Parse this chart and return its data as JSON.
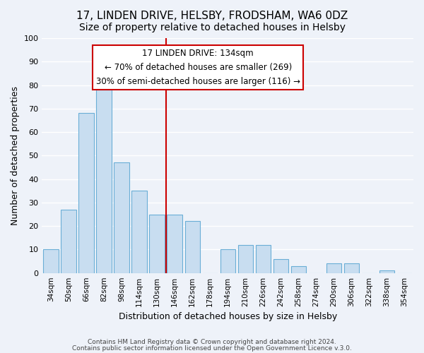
{
  "title": "17, LINDEN DRIVE, HELSBY, FRODSHAM, WA6 0DZ",
  "subtitle": "Size of property relative to detached houses in Helsby",
  "xlabel": "Distribution of detached houses by size in Helsby",
  "ylabel": "Number of detached properties",
  "bar_color": "#c8ddf0",
  "bar_edge_color": "#6aaed6",
  "categories": [
    "34sqm",
    "50sqm",
    "66sqm",
    "82sqm",
    "98sqm",
    "114sqm",
    "130sqm",
    "146sqm",
    "162sqm",
    "178sqm",
    "194sqm",
    "210sqm",
    "226sqm",
    "242sqm",
    "258sqm",
    "274sqm",
    "290sqm",
    "306sqm",
    "322sqm",
    "338sqm",
    "354sqm"
  ],
  "values": [
    10,
    27,
    68,
    78,
    47,
    35,
    25,
    25,
    22,
    0,
    10,
    12,
    12,
    6,
    3,
    0,
    4,
    4,
    0,
    1,
    0
  ],
  "ylim": [
    0,
    100
  ],
  "vline_color": "#cc0000",
  "annotation_title": "17 LINDEN DRIVE: 134sqm",
  "annotation_line1": "← 70% of detached houses are smaller (269)",
  "annotation_line2": "30% of semi-detached houses are larger (116) →",
  "annotation_box_color": "#ffffff",
  "annotation_box_edge_color": "#cc0000",
  "footer_line1": "Contains HM Land Registry data © Crown copyright and database right 2024.",
  "footer_line2": "Contains public sector information licensed under the Open Government Licence v.3.0.",
  "background_color": "#eef2f9",
  "grid_color": "#ffffff",
  "title_fontsize": 11,
  "subtitle_fontsize": 10,
  "ylabel_fontsize": 9,
  "xlabel_fontsize": 9
}
